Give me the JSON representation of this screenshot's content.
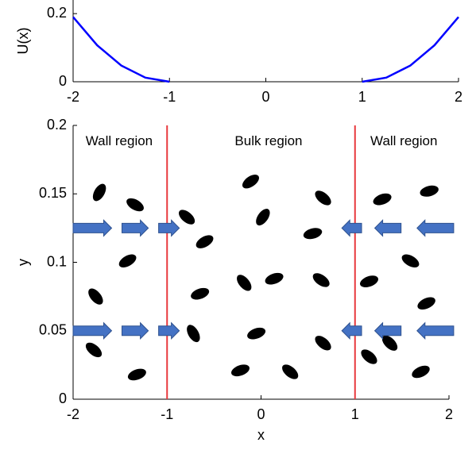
{
  "chart_data": [
    {
      "type": "line",
      "ylabel": "U(x)",
      "x": [
        -2,
        -1.75,
        -1.5,
        -1.25,
        -1,
        0,
        1,
        1.25,
        1.5,
        1.75,
        2
      ],
      "series": [
        {
          "color": "#0000ff",
          "values": [
            0.19,
            0.107,
            0.0475,
            0.012,
            0,
            null,
            0,
            0.012,
            0.0475,
            0.107,
            0.19
          ]
        }
      ],
      "xlim": [
        -2,
        2
      ],
      "ylim": [
        0,
        0.24
      ],
      "xticks": [
        -2,
        -1,
        0,
        1,
        2
      ],
      "yticks": [
        0,
        0.2
      ]
    },
    {
      "type": "scatter",
      "xlabel": "x",
      "ylabel": "y",
      "color": "#000000",
      "x": [
        -1.72,
        -1.34,
        -1.42,
        -1.76,
        -1.78,
        -1.32,
        -0.79,
        -0.6,
        -0.65,
        -0.72,
        -0.11,
        0.02,
        -0.18,
        0.14,
        -0.05,
        -0.22,
        0.31,
        0.66,
        0.55,
        0.64,
        0.66,
        1.29,
        1.79,
        1.59,
        1.15,
        1.76,
        1.37,
        1.15,
        1.7
      ],
      "y": [
        0.151,
        0.142,
        0.101,
        0.075,
        0.036,
        0.018,
        0.133,
        0.115,
        0.077,
        0.048,
        0.159,
        0.133,
        0.085,
        0.088,
        0.048,
        0.021,
        0.02,
        0.147,
        0.121,
        0.087,
        0.041,
        0.146,
        0.152,
        0.101,
        0.086,
        0.07,
        0.041,
        0.031,
        0.02
      ],
      "angles": [
        -60,
        30,
        -30,
        50,
        40,
        -20,
        40,
        -30,
        -20,
        60,
        -35,
        -55,
        50,
        -20,
        -20,
        -20,
        40,
        40,
        -15,
        35,
        40,
        -20,
        -15,
        30,
        -20,
        -25,
        45,
        40,
        -25
      ],
      "vlines": {
        "x": [
          -1,
          1
        ],
        "color": "#e8383d"
      },
      "arrows": {
        "color": "#4472c4",
        "items": [
          {
            "x": [
              -2,
              -1.59
            ],
            "y": 0.125
          },
          {
            "x": [
              -1.48,
              -1.2
            ],
            "y": 0.125
          },
          {
            "x": [
              -1.09,
              -0.87
            ],
            "y": 0.125
          },
          {
            "x": [
              2.05,
              1.66
            ],
            "y": 0.125
          },
          {
            "x": [
              1.49,
              1.21
            ],
            "y": 0.125
          },
          {
            "x": [
              1.07,
              0.86
            ],
            "y": 0.125
          },
          {
            "x": [
              -2,
              -1.59
            ],
            "y": 0.05
          },
          {
            "x": [
              -1.48,
              -1.2
            ],
            "y": 0.05
          },
          {
            "x": [
              -1.09,
              -0.87
            ],
            "y": 0.05
          },
          {
            "x": [
              2.05,
              1.66
            ],
            "y": 0.05
          },
          {
            "x": [
              1.49,
              1.21
            ],
            "y": 0.05
          },
          {
            "x": [
              1.07,
              0.86
            ],
            "y": 0.05
          }
        ]
      },
      "annotations": [
        {
          "text": "Wall region",
          "x": -1.51,
          "y": 0.188
        },
        {
          "text": "Bulk region",
          "x": 0.08,
          "y": 0.188
        },
        {
          "text": "Wall region",
          "x": 1.52,
          "y": 0.188
        }
      ],
      "xlim": [
        -2,
        2
      ],
      "ylim": [
        0,
        0.2
      ],
      "xticks": [
        -2,
        -1,
        0,
        1,
        2
      ],
      "yticks": [
        0,
        0.05,
        0.1,
        0.15,
        0.2
      ]
    }
  ]
}
